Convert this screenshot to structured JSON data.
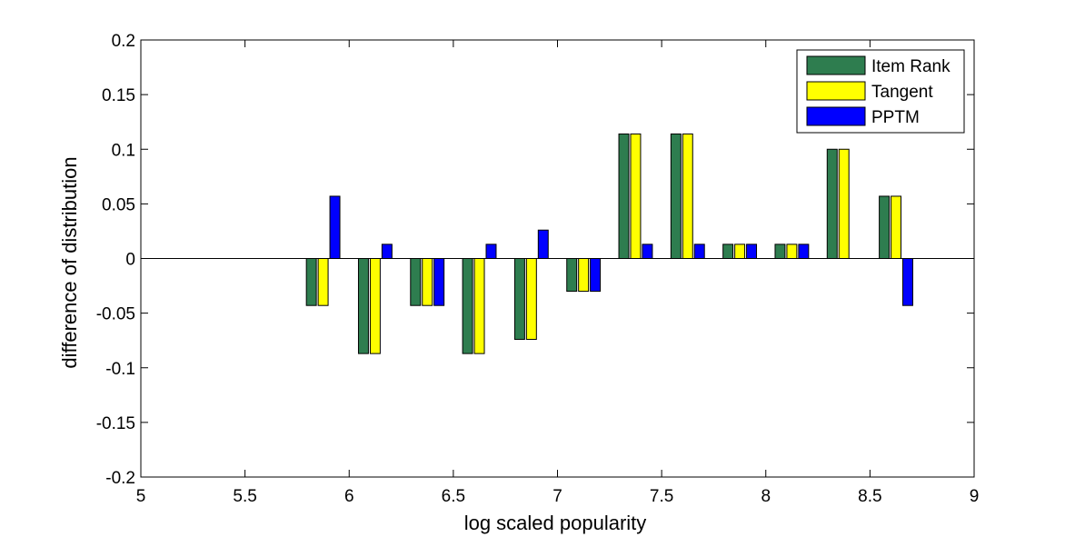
{
  "chart_data": {
    "type": "bar",
    "xlabel": "log scaled popularity",
    "ylabel": "difference of distribution",
    "xlim": [
      5,
      9
    ],
    "ylim": [
      -0.2,
      0.2
    ],
    "xticks": [
      "5",
      "5.5",
      "6",
      "6.5",
      "7",
      "7.5",
      "8",
      "8.5",
      "9"
    ],
    "yticks": [
      "-0.2",
      "-0.15",
      "-0.1",
      "-0.05",
      "0",
      "0.05",
      "0.1",
      "0.15",
      "0.2"
    ],
    "grid": false,
    "legend_position": "top-right",
    "x": [
      5.875,
      6.125,
      6.375,
      6.625,
      6.875,
      7.125,
      7.375,
      7.625,
      7.875,
      8.125,
      8.375,
      8.625
    ],
    "series": [
      {
        "name": "Item Rank",
        "color": "#2e7d4f",
        "values": [
          -0.043,
          -0.087,
          -0.043,
          -0.087,
          -0.074,
          -0.03,
          0.114,
          0.114,
          0.013,
          0.013,
          0.1,
          0.057
        ]
      },
      {
        "name": "Tangent",
        "color": "#ffff00",
        "values": [
          -0.043,
          -0.087,
          -0.043,
          -0.087,
          -0.074,
          -0.03,
          0.114,
          0.114,
          0.013,
          0.013,
          0.1,
          0.057
        ]
      },
      {
        "name": "PPTM",
        "color": "#0000ff",
        "values": [
          0.057,
          0.013,
          -0.043,
          0.013,
          0.026,
          -0.03,
          0.013,
          0.013,
          0.013,
          0.013,
          0.0,
          -0.043
        ]
      }
    ]
  }
}
